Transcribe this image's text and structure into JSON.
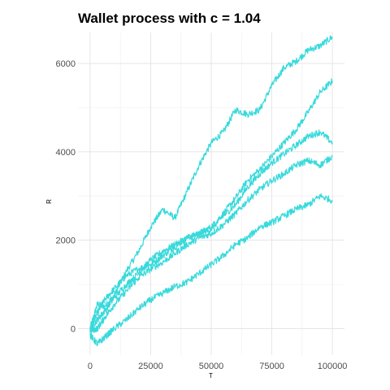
{
  "chart_data": {
    "type": "line",
    "title": "Wallet process with c =  1.04",
    "xlabel": "T",
    "ylabel": "R",
    "xlim": [
      -5000,
      105000
    ],
    "ylim": [
      -600,
      6700
    ],
    "x_ticks": [
      0,
      25000,
      50000,
      75000,
      100000
    ],
    "x_tick_labels": [
      "0",
      "25000",
      "50000",
      "75000",
      "100000"
    ],
    "y_ticks": [
      0,
      2000,
      4000,
      6000
    ],
    "y_tick_labels": [
      "0",
      "2000",
      "4000",
      "6000"
    ],
    "grid": true,
    "legend": "none",
    "line_color": "#38d9db",
    "series": [
      {
        "x": [
          0,
          3000,
          6000,
          10000,
          15000,
          20000,
          25000,
          30000,
          35000,
          40000,
          45000,
          50000,
          55000,
          60000,
          65000,
          70000,
          75000,
          80000,
          85000,
          90000,
          95000,
          100000
        ],
        "values": [
          0,
          550,
          500,
          750,
          1300,
          1750,
          2300,
          2700,
          2500,
          3100,
          3700,
          4200,
          4450,
          4950,
          4850,
          4950,
          5500,
          5900,
          6050,
          6300,
          6400,
          6600
        ]
      },
      {
        "x": [
          0,
          3000,
          6000,
          10000,
          15000,
          20000,
          25000,
          30000,
          35000,
          40000,
          45000,
          50000,
          55000,
          60000,
          65000,
          70000,
          75000,
          80000,
          85000,
          90000,
          95000,
          100000
        ],
        "values": [
          0,
          350,
          650,
          900,
          1200,
          1350,
          1450,
          1650,
          1850,
          2050,
          2150,
          2300,
          2600,
          2950,
          3350,
          3600,
          3900,
          4200,
          4500,
          4900,
          5350,
          5600
        ]
      },
      {
        "x": [
          0,
          3000,
          6000,
          10000,
          15000,
          20000,
          25000,
          30000,
          35000,
          40000,
          45000,
          50000,
          55000,
          60000,
          65000,
          70000,
          75000,
          80000,
          85000,
          90000,
          95000,
          100000
        ],
        "values": [
          0,
          200,
          400,
          700,
          1000,
          1250,
          1550,
          1750,
          1900,
          2050,
          2150,
          2250,
          2550,
          2800,
          3200,
          3500,
          3750,
          3950,
          4150,
          4350,
          4450,
          4200
        ]
      },
      {
        "x": [
          0,
          3000,
          6000,
          10000,
          15000,
          20000,
          25000,
          30000,
          35000,
          40000,
          45000,
          50000,
          55000,
          60000,
          65000,
          70000,
          75000,
          80000,
          85000,
          90000,
          95000,
          100000
        ],
        "values": [
          -50,
          0,
          250,
          550,
          850,
          1150,
          1350,
          1500,
          1700,
          1900,
          2050,
          2150,
          2350,
          2600,
          2900,
          3150,
          3350,
          3500,
          3700,
          3800,
          3700,
          3900
        ]
      },
      {
        "x": [
          0,
          3000,
          6000,
          10000,
          15000,
          20000,
          25000,
          30000,
          35000,
          40000,
          45000,
          50000,
          55000,
          60000,
          65000,
          70000,
          75000,
          80000,
          85000,
          90000,
          95000,
          100000
        ],
        "values": [
          -150,
          -350,
          -200,
          0,
          200,
          450,
          650,
          800,
          950,
          1050,
          1250,
          1450,
          1650,
          1900,
          2050,
          2300,
          2400,
          2550,
          2700,
          2800,
          3000,
          2900
        ]
      }
    ]
  }
}
